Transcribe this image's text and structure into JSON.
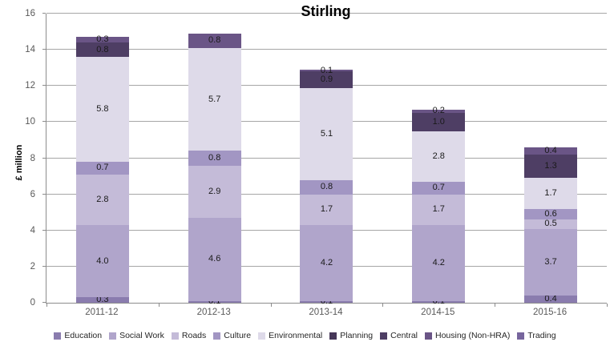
{
  "title": "Stirling",
  "y_axis_label": "£ million",
  "chart_data": {
    "type": "bar",
    "stacked": true,
    "title": "Stirling",
    "xlabel": "",
    "ylabel": "£ million",
    "ylim": [
      0,
      16
    ],
    "yticks": [
      0,
      2,
      4,
      6,
      8,
      10,
      12,
      14,
      16
    ],
    "grid": true,
    "legend_position": "bottom",
    "data_labels": true,
    "categories": [
      "2011-12",
      "2012-13",
      "2013-14",
      "2014-15",
      "2015-16"
    ],
    "series": [
      {
        "name": "Education",
        "color": "#8a7cae",
        "values": [
          0.3,
          0.1,
          0.1,
          0.1,
          0.4
        ]
      },
      {
        "name": "Social Work",
        "color": "#b0a5cb",
        "values": [
          4.0,
          4.6,
          4.2,
          4.2,
          3.7
        ]
      },
      {
        "name": "Roads",
        "color": "#c4bbd8",
        "values": [
          2.8,
          2.9,
          1.7,
          1.7,
          0.5
        ]
      },
      {
        "name": "Culture",
        "color": "#a296c3",
        "values": [
          0.7,
          0.8,
          0.8,
          0.7,
          0.6
        ]
      },
      {
        "name": "Environmental",
        "color": "#dedae9",
        "values": [
          5.8,
          5.7,
          5.1,
          2.8,
          1.7
        ]
      },
      {
        "name": "Planning",
        "color": "#463758",
        "values": [
          0,
          0,
          0,
          0,
          0
        ]
      },
      {
        "name": "Central",
        "color": "#4e3e64",
        "values": [
          0.8,
          0,
          0.9,
          1.0,
          1.3
        ]
      },
      {
        "name": "Housing (Non-HRA)",
        "color": "#6a5586",
        "values": [
          0.3,
          0.8,
          0.1,
          0.2,
          0.4
        ]
      },
      {
        "name": "Trading",
        "color": "#77659d",
        "values": [
          0,
          0,
          0,
          0,
          0
        ]
      }
    ],
    "bar_totals": [
      14.7,
      14.9,
      12.9,
      10.7,
      8.6
    ]
  }
}
